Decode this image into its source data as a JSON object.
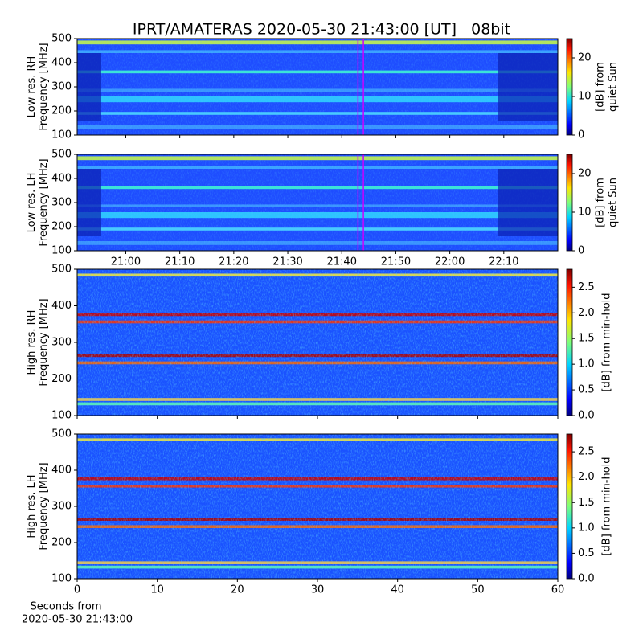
{
  "chart_data": [
    {
      "type": "heatmap",
      "title": "IPRT/AMATERAS 2020-05-30 21:43:00 [UT]   08bit",
      "ylabel": [
        "Low res. RH",
        "Frequency [MHz]"
      ],
      "ylim": [
        100,
        500
      ],
      "yticks": [
        100,
        200,
        300,
        400,
        500
      ],
      "xlim": [
        "20:51",
        "22:20"
      ],
      "vlines": [
        "21:43",
        "21:44"
      ],
      "vline_color": "#cc00ff",
      "colorbar_label": [
        "[dB] from",
        "quiet Sun"
      ],
      "clim": [
        0,
        25
      ],
      "cticks": [
        0,
        10,
        20
      ]
    },
    {
      "type": "heatmap",
      "ylabel": [
        "Low res. LH",
        "Frequency [MHz]"
      ],
      "ylim": [
        100,
        500
      ],
      "yticks": [
        100,
        200,
        300,
        400,
        500
      ],
      "xlim": [
        "20:51",
        "22:20"
      ],
      "xticks": [
        "21:00",
        "21:10",
        "21:20",
        "21:30",
        "21:40",
        "21:50",
        "22:00",
        "22:10"
      ],
      "vlines": [
        "21:43",
        "21:44"
      ],
      "vline_color": "#cc00ff",
      "colorbar_label": [
        "[dB] from",
        "quiet Sun"
      ],
      "clim": [
        0,
        25
      ],
      "cticks": [
        0,
        10,
        20
      ]
    },
    {
      "type": "heatmap",
      "ylabel": [
        "High res. RH",
        "Frequency [MHz]"
      ],
      "ylim": [
        100,
        500
      ],
      "yticks": [
        100,
        200,
        300,
        400,
        500
      ],
      "xlim": [
        0,
        60
      ],
      "colorbar_label": [
        "[dB] from min-hold"
      ],
      "clim": [
        0,
        2.85
      ],
      "cticks": [
        {
          "value": 0,
          "label": "0.0"
        },
        {
          "value": 0.5,
          "label": "0.5"
        },
        {
          "value": 1,
          "label": "1.0"
        },
        {
          "value": 1.5,
          "label": "1.5"
        },
        {
          "value": 2,
          "label": "2.0"
        },
        {
          "value": 2.5,
          "label": "2.5"
        }
      ]
    },
    {
      "type": "heatmap",
      "ylabel": [
        "High res. LH",
        "Frequency [MHz]"
      ],
      "ylim": [
        100,
        500
      ],
      "yticks": [
        100,
        200,
        300,
        400,
        500
      ],
      "xlim": [
        0,
        60
      ],
      "xticks": [
        0,
        10,
        20,
        30,
        40,
        50,
        60
      ],
      "xlabel": [
        "Seconds from",
        "2020-05-30 21:43:00"
      ],
      "colorbar_label": [
        "[dB] from min-hold"
      ],
      "clim": [
        0,
        2.85
      ],
      "cticks": [
        {
          "value": 0,
          "label": "0.0"
        },
        {
          "value": 0.5,
          "label": "0.5"
        },
        {
          "value": 1,
          "label": "1.0"
        },
        {
          "value": 1.5,
          "label": "1.5"
        },
        {
          "value": 2,
          "label": "2.0"
        },
        {
          "value": 2.5,
          "label": "2.5"
        }
      ]
    }
  ]
}
